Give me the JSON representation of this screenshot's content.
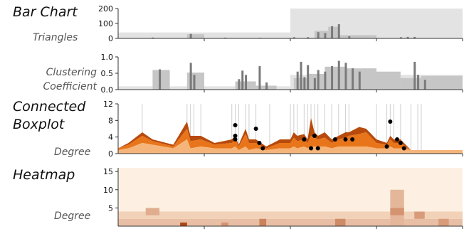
{
  "chart_data": [
    {
      "type": "bar",
      "title": "Bar Chart",
      "ylabel": "Triangles",
      "ylim": [
        0,
        200
      ],
      "yticks": [
        "200",
        "100",
        "0"
      ],
      "bands": [
        {
          "x0": 0,
          "x1": 50,
          "v": 40
        },
        {
          "x0": 50,
          "x1": 100,
          "v": 200
        }
      ],
      "wide_bars": [
        {
          "x0": 20,
          "x1": 25,
          "v": 28
        },
        {
          "x0": 57,
          "x1": 61,
          "v": 50
        },
        {
          "x0": 61,
          "x1": 64,
          "v": 78
        },
        {
          "x0": 64,
          "x1": 75,
          "v": 22
        }
      ],
      "spikes": [
        {
          "x": 10,
          "v": 6
        },
        {
          "x": 21,
          "v": 30
        },
        {
          "x": 31,
          "v": 5
        },
        {
          "x": 41,
          "v": 4
        },
        {
          "x": 51,
          "v": 8
        },
        {
          "x": 55,
          "v": 8
        },
        {
          "x": 58,
          "v": 42
        },
        {
          "x": 60,
          "v": 36
        },
        {
          "x": 62,
          "v": 82
        },
        {
          "x": 64,
          "v": 95
        },
        {
          "x": 67,
          "v": 14
        },
        {
          "x": 82,
          "v": 8
        },
        {
          "x": 84,
          "v": 10
        },
        {
          "x": 86,
          "v": 10
        }
      ]
    },
    {
      "type": "bar",
      "ylabel": "Clustering Coefficient",
      "ylim": [
        0,
        1.0
      ],
      "yticks": [
        "1.0",
        "0.5",
        "0.0"
      ],
      "bands": [
        {
          "x0": 0,
          "x1": 50,
          "v": 0.1
        },
        {
          "x0": 50,
          "x1": 100,
          "v": 0.45
        }
      ],
      "wide_bars": [
        {
          "x0": 10,
          "x1": 15,
          "v": 0.6
        },
        {
          "x0": 20,
          "x1": 25,
          "v": 0.52
        },
        {
          "x0": 34,
          "x1": 40,
          "v": 0.25
        },
        {
          "x0": 40,
          "x1": 46,
          "v": 0.12
        },
        {
          "x0": 51,
          "x1": 55,
          "v": 0.35
        },
        {
          "x0": 55,
          "x1": 60,
          "v": 0.48
        },
        {
          "x0": 60,
          "x1": 66,
          "v": 0.7
        },
        {
          "x0": 66,
          "x1": 75,
          "v": 0.65
        },
        {
          "x0": 75,
          "x1": 82,
          "v": 0.55
        },
        {
          "x0": 82,
          "x1": 88,
          "v": 0.35
        },
        {
          "x0": 88,
          "x1": 100,
          "v": 0.42
        }
      ],
      "spikes": [
        {
          "x": 12,
          "v": 0.62
        },
        {
          "x": 21,
          "v": 0.82
        },
        {
          "x": 22,
          "v": 0.45
        },
        {
          "x": 35,
          "v": 0.32
        },
        {
          "x": 36,
          "v": 0.58
        },
        {
          "x": 37,
          "v": 0.45
        },
        {
          "x": 41,
          "v": 0.72
        },
        {
          "x": 43,
          "v": 0.22
        },
        {
          "x": 52,
          "v": 0.55
        },
        {
          "x": 53,
          "v": 0.85
        },
        {
          "x": 54,
          "v": 0.38
        },
        {
          "x": 55,
          "v": 0.75
        },
        {
          "x": 57,
          "v": 0.35
        },
        {
          "x": 58,
          "v": 0.6
        },
        {
          "x": 60,
          "v": 0.55
        },
        {
          "x": 62,
          "v": 0.72
        },
        {
          "x": 64,
          "v": 0.88
        },
        {
          "x": 66,
          "v": 0.82
        },
        {
          "x": 68,
          "v": 0.65
        },
        {
          "x": 70,
          "v": 0.55
        },
        {
          "x": 86,
          "v": 0.85
        },
        {
          "x": 87,
          "v": 0.45
        },
        {
          "x": 89,
          "v": 0.3
        }
      ]
    },
    {
      "type": "area",
      "title": "Connected Boxplot",
      "ylabel": "Degree",
      "ylim": [
        0,
        14
      ],
      "yticks": [
        "12",
        "8",
        "4",
        "0"
      ],
      "accent": "#e8751a",
      "guides": [
        7,
        20,
        21,
        22,
        24,
        33,
        34,
        35,
        37,
        38,
        40,
        44,
        50,
        51,
        52,
        54,
        55,
        56,
        57,
        58,
        60,
        62,
        64,
        66,
        67,
        75,
        78,
        79,
        80,
        82,
        85,
        87,
        88
      ],
      "x": [
        0,
        3,
        7,
        10,
        16,
        20,
        21,
        24,
        28,
        33,
        34,
        35,
        37,
        38,
        40,
        43,
        47,
        50,
        51,
        52,
        54,
        55,
        56,
        57,
        58,
        60,
        62,
        64,
        66,
        67,
        70,
        72,
        75,
        78,
        79,
        80,
        82,
        85,
        87,
        88,
        92,
        100
      ],
      "q1": [
        1,
        1.5,
        3,
        2.5,
        1.5,
        4,
        1.5,
        2,
        1.5,
        1.5,
        2,
        1,
        2,
        1,
        1.5,
        1,
        1.5,
        1.5,
        2,
        1.5,
        2,
        1.5,
        2,
        2,
        2,
        2,
        1.5,
        2,
        2,
        2,
        2,
        2,
        1.5,
        1.5,
        2,
        1.5,
        1.5,
        1,
        1,
        1,
        1,
        1
      ],
      "q3": [
        1.5,
        2.5,
        5,
        3.5,
        2,
        7,
        3.5,
        4,
        2.5,
        3,
        4,
        2,
        5.5,
        3,
        3,
        1.5,
        3,
        3,
        4.5,
        3.5,
        4,
        3,
        5,
        4.5,
        4,
        4.5,
        3,
        4,
        4.5,
        5,
        5.5,
        6,
        3,
        2.5,
        4,
        3,
        3,
        1,
        1,
        1,
        1,
        1
      ],
      "max": [
        1.5,
        3,
        6,
        4,
        2.5,
        9,
        5,
        5,
        3,
        4,
        5,
        2.5,
        7,
        4,
        4,
        2,
        4,
        4,
        6,
        5,
        5.5,
        4,
        10,
        6,
        5,
        6,
        4,
        5,
        6,
        6,
        7.5,
        7,
        4,
        3,
        5,
        4,
        4,
        1,
        1,
        1,
        1,
        1
      ],
      "outliers": [
        [
          34,
          8
        ],
        [
          34,
          5
        ],
        [
          34,
          4
        ],
        [
          40,
          7
        ],
        [
          41,
          3
        ],
        [
          42,
          1.5
        ],
        [
          54,
          4
        ],
        [
          56,
          1.5
        ],
        [
          57,
          5
        ],
        [
          58,
          1.5
        ],
        [
          63,
          4
        ],
        [
          66,
          4
        ],
        [
          68,
          4
        ],
        [
          78,
          2
        ],
        [
          79,
          9
        ],
        [
          81,
          4
        ],
        [
          82,
          3
        ],
        [
          83,
          1.5
        ]
      ]
    },
    {
      "type": "heatmap",
      "title": "Heatmap",
      "ylabel": "Degree",
      "ylim": [
        0,
        16
      ],
      "yticks": [
        "15",
        "10",
        "5"
      ],
      "base_color": "#fdf0e2",
      "bands": [
        {
          "x0": 0,
          "x1": 100,
          "y0": 0,
          "y1": 2,
          "v": 0.25
        },
        {
          "x0": 0,
          "x1": 100,
          "y0": 2,
          "y1": 4,
          "v": 0.15
        },
        {
          "x0": 8,
          "x1": 12,
          "y0": 3,
          "y1": 5,
          "v": 0.35
        },
        {
          "x0": 18,
          "x1": 20,
          "y0": 0,
          "y1": 1,
          "v": 0.95
        },
        {
          "x0": 30,
          "x1": 32,
          "y0": 0,
          "y1": 1,
          "v": 0.5
        },
        {
          "x0": 41,
          "x1": 43,
          "y0": 0,
          "y1": 2,
          "v": 0.6
        },
        {
          "x0": 63,
          "x1": 66,
          "y0": 0,
          "y1": 2,
          "v": 0.55
        },
        {
          "x0": 79,
          "x1": 83,
          "y0": 0,
          "y1": 10,
          "v": 0.3
        },
        {
          "x0": 79,
          "x1": 83,
          "y0": 3,
          "y1": 5,
          "v": 0.5
        },
        {
          "x0": 86,
          "x1": 89,
          "y0": 2,
          "y1": 4,
          "v": 0.45
        },
        {
          "x0": 93,
          "x1": 96,
          "y0": 0,
          "y1": 2,
          "v": 0.45
        }
      ]
    }
  ]
}
